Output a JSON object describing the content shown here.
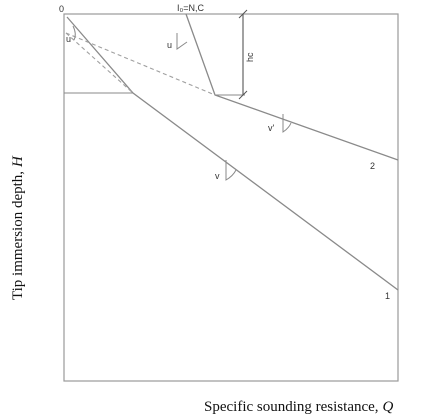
{
  "diagram": {
    "origin_label": "0",
    "x_axis_label": "Specific sounding resistance,",
    "x_axis_var": "Q",
    "y_axis_label": "Tip immersion depth,",
    "y_axis_var": "H",
    "top_formula": "I₀=N,C",
    "depth_marker_label": "hc",
    "angle_labels": {
      "upper_left": "u",
      "upper_mid": "u",
      "line1": "v",
      "line2": "v'"
    },
    "line_labels": {
      "line1": "1",
      "line2": "2"
    },
    "colors": {
      "frame": "#9a9a9a",
      "lines": "#8a8a8a",
      "dashed": "#a0a0a0",
      "text": "#333333"
    }
  }
}
